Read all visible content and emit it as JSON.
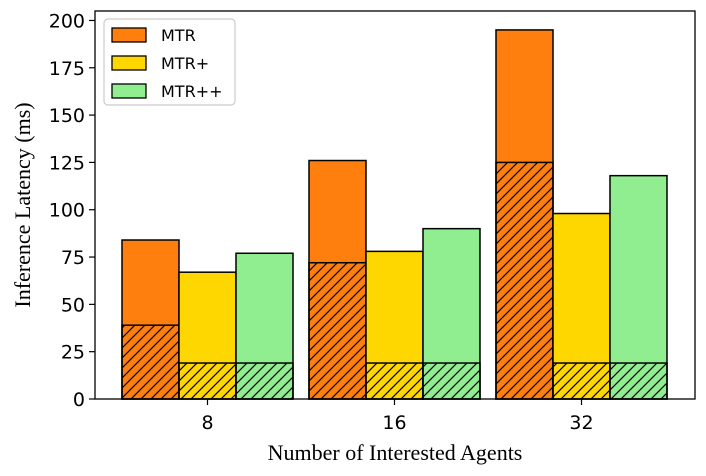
{
  "chart_data": {
    "type": "bar",
    "stacked": true,
    "categories": [
      "8",
      "16",
      "32"
    ],
    "xlabel": "Number of Interested Agents",
    "ylabel": "Inference Latency (ms)",
    "ylim": [
      0,
      205
    ],
    "yticks": [
      0,
      25,
      50,
      75,
      100,
      125,
      150,
      175,
      200
    ],
    "grid": false,
    "legend_position": "top-left",
    "series": [
      {
        "name": "MTR",
        "color": "#ff7f0e",
        "hatched_part": [
          39,
          72,
          125
        ],
        "total": [
          84,
          126,
          195
        ]
      },
      {
        "name": "MTR+",
        "color": "#ffd700",
        "hatched_part": [
          19,
          19,
          19
        ],
        "total": [
          67,
          78,
          98
        ]
      },
      {
        "name": "MTR++",
        "color": "#90ee90",
        "hatched_part": [
          19,
          19,
          19
        ],
        "total": [
          77,
          90,
          118
        ]
      }
    ]
  }
}
